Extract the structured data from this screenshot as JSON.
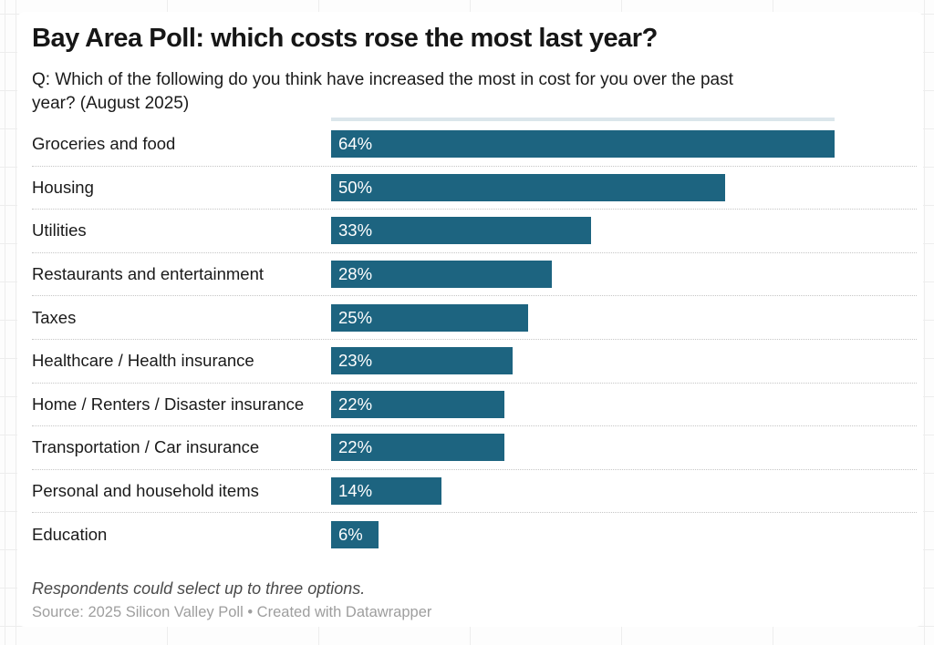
{
  "chart_data": {
    "type": "bar",
    "orientation": "horizontal",
    "title": "Bay Area Poll: which costs rose the most last year?",
    "subtitle": "Q: Which of the following do you think have increased the most in cost for you over the past\nyear? (August 2025)",
    "categories": [
      "Groceries and food",
      "Housing",
      "Utilities",
      "Restaurants and entertainment",
      "Taxes",
      "Healthcare / Health insurance",
      "Home / Renters / Disaster insurance",
      "Transportation / Car insurance",
      "Personal and household items",
      "Education"
    ],
    "values": [
      64,
      50,
      33,
      28,
      25,
      23,
      22,
      22,
      14,
      6
    ],
    "value_suffix": "%",
    "bar_color": "#1d6480",
    "value_label_color": "#ffffff",
    "value_label_position": "inside-left",
    "grid": "off",
    "legend": "none",
    "footnote": "Respondents could select up to three options.",
    "source": "Source: 2025 Silicon Valley Poll • Created with Datawrapper"
  }
}
